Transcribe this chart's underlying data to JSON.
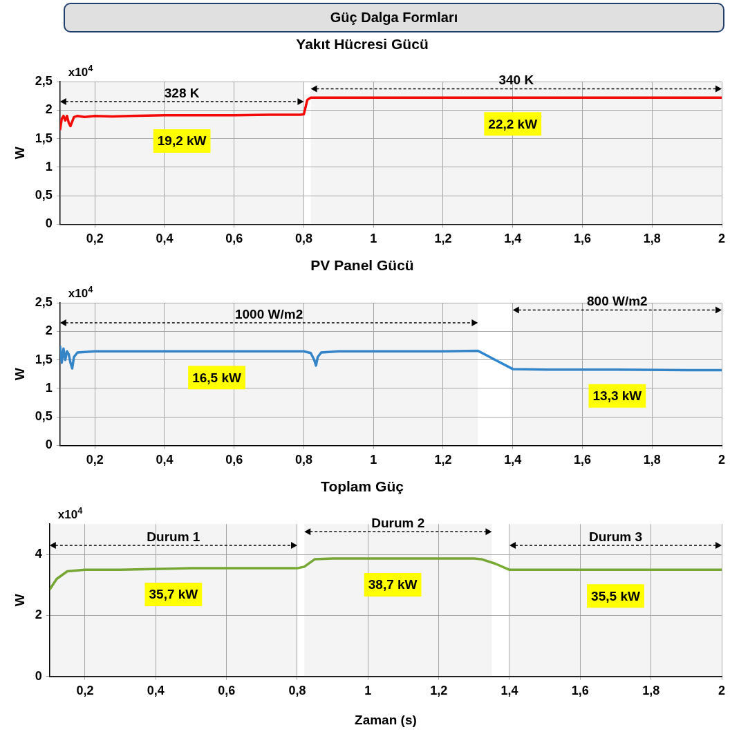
{
  "chart_data": [
    {
      "type": "other",
      "title": "Güç Dalga Formları"
    },
    {
      "type": "line",
      "title": "Yakıt Hücresi Gücü",
      "ylabel": "W",
      "grid": true,
      "x": [
        0.1,
        0.105,
        0.11,
        0.115,
        0.12,
        0.125,
        0.13,
        0.135,
        0.14,
        0.15,
        0.17,
        0.2,
        0.25,
        0.3,
        0.4,
        0.5,
        0.6,
        0.7,
        0.79,
        0.8,
        0.805,
        0.81,
        0.82,
        0.85,
        1,
        1.2,
        1.4,
        1.6,
        1.8,
        2
      ],
      "series": [
        {
          "color": "#ff0000",
          "values": [
            1.65,
            1.85,
            1.9,
            1.82,
            1.9,
            1.78,
            1.72,
            1.8,
            1.88,
            1.9,
            1.88,
            1.9,
            1.89,
            1.9,
            1.91,
            1.91,
            1.91,
            1.92,
            1.92,
            1.93,
            2.05,
            2.18,
            2.22,
            2.22,
            2.22,
            2.22,
            2.22,
            2.22,
            2.22,
            2.22
          ]
        }
      ],
      "xlim": [
        0.1,
        2
      ],
      "xticks": [
        {
          "value": 0.2,
          "label": "0,2"
        },
        {
          "value": 0.4,
          "label": "0,4"
        },
        {
          "value": 0.6,
          "label": "0,6"
        },
        {
          "value": 0.8,
          "label": "0,8"
        },
        {
          "value": 1,
          "label": "1"
        },
        {
          "value": 1.2,
          "label": "1,2"
        },
        {
          "value": 1.4,
          "label": "1,4"
        },
        {
          "value": 1.6,
          "label": "1,6"
        },
        {
          "value": 1.8,
          "label": "1,8"
        },
        {
          "value": 2,
          "label": "2"
        }
      ],
      "ylim": [
        0,
        2.5
      ],
      "yticks": [
        0,
        {
          "value": 0.5,
          "label": "0,5"
        },
        1,
        {
          "value": 1.5,
          "label": "1,5"
        },
        2,
        {
          "value": 2.5,
          "label": "2,5"
        }
      ],
      "bands": [
        {
          "axis": "x",
          "from": 0.1,
          "to": 0.8,
          "label": "328 K"
        },
        {
          "axis": "x",
          "from": 0.82,
          "to": 2,
          "label": "340 K"
        }
      ],
      "annotations": [
        "x10$^{4}$",
        {
          "text": "19,2 kW",
          "x": 0.45,
          "y": 1.92
        },
        {
          "text": "22,2 kW",
          "x": 1.4,
          "y": 2.22
        }
      ]
    },
    {
      "type": "line",
      "title": "PV Panel Gücü",
      "ylabel": "W",
      "grid": true,
      "x": [
        0.1,
        0.105,
        0.11,
        0.115,
        0.12,
        0.125,
        0.13,
        0.135,
        0.14,
        0.15,
        0.2,
        0.4,
        0.6,
        0.8,
        0.82,
        0.83,
        0.835,
        0.84,
        0.85,
        0.9,
        1,
        1.2,
        1.3,
        1.35,
        1.4,
        1.5,
        1.7,
        1.9,
        2
      ],
      "series": [
        {
          "color": "#2f86d0",
          "values": [
            1.75,
            1.45,
            1.7,
            1.5,
            1.65,
            1.6,
            1.45,
            1.35,
            1.55,
            1.63,
            1.65,
            1.65,
            1.65,
            1.65,
            1.62,
            1.5,
            1.4,
            1.55,
            1.63,
            1.65,
            1.65,
            1.65,
            1.66,
            1.5,
            1.34,
            1.33,
            1.33,
            1.32,
            1.32
          ]
        }
      ],
      "xlim": [
        0.1,
        2
      ],
      "xticks": [
        {
          "value": 0.2,
          "label": "0,2"
        },
        {
          "value": 0.4,
          "label": "0,4"
        },
        {
          "value": 0.6,
          "label": "0,6"
        },
        {
          "value": 0.8,
          "label": "0,8"
        },
        {
          "value": 1,
          "label": "1"
        },
        {
          "value": 1.2,
          "label": "1,2"
        },
        {
          "value": 1.4,
          "label": "1,4"
        },
        {
          "value": 1.6,
          "label": "1,6"
        },
        {
          "value": 1.8,
          "label": "1,8"
        },
        {
          "value": 2,
          "label": "2"
        }
      ],
      "ylim": [
        0,
        2.5
      ],
      "yticks": [
        0,
        {
          "value": 0.5,
          "label": "0,5"
        },
        1,
        {
          "value": 1.5,
          "label": "1,5"
        },
        2,
        {
          "value": 2.5,
          "label": "2,5"
        }
      ],
      "bands": [
        {
          "axis": "x",
          "from": 0.1,
          "to": 1.3,
          "label": "1000 W/m2"
        },
        {
          "axis": "x",
          "from": 1.4,
          "to": 2,
          "label": "800 W/m2"
        }
      ],
      "annotations": [
        "x10$^{4}$",
        {
          "text": "16,5 kW",
          "x": 0.55,
          "y": 1.65
        },
        {
          "text": "13,3 kW",
          "x": 1.7,
          "y": 1.33
        }
      ]
    },
    {
      "type": "line",
      "title": "Toplam Güç",
      "ylabel": "W",
      "xlabel": "Zaman (s)",
      "grid": true,
      "x": [
        0.1,
        0.12,
        0.15,
        0.2,
        0.3,
        0.5,
        0.7,
        0.8,
        0.82,
        0.85,
        0.9,
        1.1,
        1.3,
        1.32,
        1.36,
        1.4,
        1.5,
        1.7,
        1.9,
        2
      ],
      "series": [
        {
          "color": "#77ac30",
          "values": [
            2.85,
            3.2,
            3.45,
            3.5,
            3.5,
            3.55,
            3.55,
            3.55,
            3.6,
            3.85,
            3.87,
            3.87,
            3.87,
            3.85,
            3.7,
            3.5,
            3.5,
            3.5,
            3.5,
            3.5
          ]
        }
      ],
      "xlim": [
        0.1,
        2
      ],
      "xticks": [
        {
          "value": 0.2,
          "label": "0,2"
        },
        {
          "value": 0.4,
          "label": "0,4"
        },
        {
          "value": 0.6,
          "label": "0,6"
        },
        {
          "value": 0.8,
          "label": "0,8"
        },
        {
          "value": 1,
          "label": "1"
        },
        {
          "value": 1.2,
          "label": "1,2"
        },
        {
          "value": 1.4,
          "label": "1,4"
        },
        {
          "value": 1.6,
          "label": "1,6"
        },
        {
          "value": 1.8,
          "label": "1,8"
        },
        {
          "value": 2,
          "label": "2"
        }
      ],
      "ylim": [
        0,
        5
      ],
      "yticks": [
        0,
        2,
        4
      ],
      "bands": [
        {
          "axis": "x",
          "from": 0.1,
          "to": 0.8,
          "label": "Durum 1"
        },
        {
          "axis": "x",
          "from": 0.82,
          "to": 1.35,
          "label": "Durum 2"
        },
        {
          "axis": "x",
          "from": 1.4,
          "to": 2,
          "label": "Durum 3"
        }
      ],
      "annotations": [
        "x10$^{4}$",
        {
          "text": "35,7 kW",
          "x": 0.45,
          "y": 3.55
        },
        {
          "text": "38,7 kW",
          "x": 1.07,
          "y": 3.87
        },
        {
          "text": "35,5 kW",
          "x": 1.7,
          "y": 3.5
        }
      ]
    }
  ]
}
